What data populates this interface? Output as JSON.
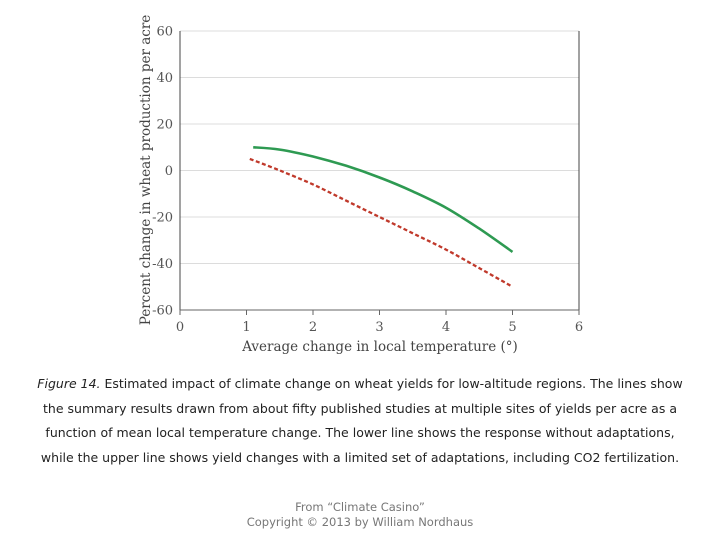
{
  "chart_data": {
    "type": "line",
    "xlabel": "Average change in local temperature (°)",
    "ylabel": "Percent change in wheat production per acre",
    "xlim": [
      0,
      6
    ],
    "ylim": [
      -60,
      60
    ],
    "xticks": [
      "0",
      "1",
      "2",
      "3",
      "4",
      "5",
      "6"
    ],
    "yticks": [
      "60",
      "40",
      "20",
      "0",
      "-20",
      "-40",
      "-60"
    ],
    "grid": "horizontal",
    "series": [
      {
        "style": "solid",
        "color": "#2e9a52",
        "x": [
          1.1,
          1.5,
          2.0,
          2.5,
          3.0,
          3.5,
          4.0,
          4.5,
          5.0
        ],
        "y": [
          10,
          9,
          6,
          2,
          -3,
          -9,
          -16,
          -25,
          -35
        ]
      },
      {
        "style": "dashed",
        "color": "#c0392b",
        "x": [
          1.05,
          1.5,
          2.0,
          2.5,
          3.0,
          3.5,
          4.0,
          4.5,
          5.0
        ],
        "y": [
          5,
          0,
          -6,
          -13,
          -20,
          -27,
          -34,
          -42,
          -50
        ]
      }
    ]
  },
  "caption": {
    "label": "Figure 14.",
    "text": " Estimated impact of climate change on wheat yields for low-altitude regions. The lines show the summary results drawn from about fifty published studies at multiple sites of yields per acre as a function of mean local temperature change. The lower line shows the response without adaptations, while the upper line shows yield changes with a limited set of adaptations, including CO2 fertilization."
  },
  "credit": {
    "line1": "From “Climate Casino”",
    "line2": "Copyright © 2013 by William Nordhaus"
  }
}
